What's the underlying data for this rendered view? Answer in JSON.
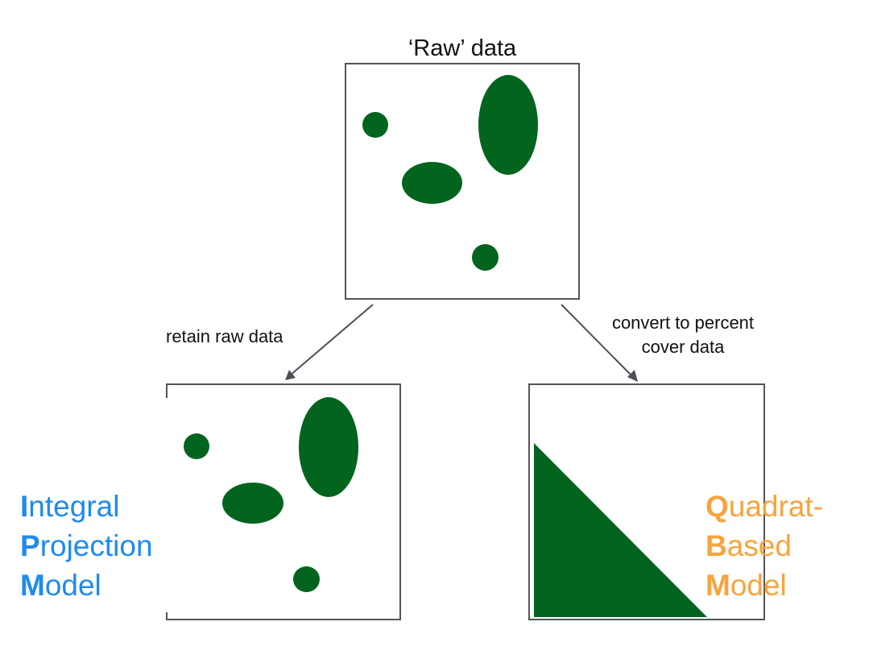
{
  "raw_panel": {
    "title": "‘Raw’ data"
  },
  "arrows": {
    "left_label": "retain raw data",
    "right_label_lines": [
      "convert to percent",
      "cover data"
    ]
  },
  "ipm": {
    "color": "#1e8bef",
    "lines": [
      {
        "initial": "I",
        "rest": "ntegral"
      },
      {
        "initial": "P",
        "rest": "rojection"
      },
      {
        "initial": "M",
        "rest": "odel"
      }
    ]
  },
  "qbm": {
    "color": "#f7a43c",
    "lines": [
      {
        "initial": "Q",
        "rest": "uadrat-"
      },
      {
        "initial": "B",
        "rest": "ased"
      },
      {
        "initial": "M",
        "rest": "odel"
      }
    ]
  },
  "colors": {
    "vegetation": "#03641e",
    "frame": "#555555"
  }
}
